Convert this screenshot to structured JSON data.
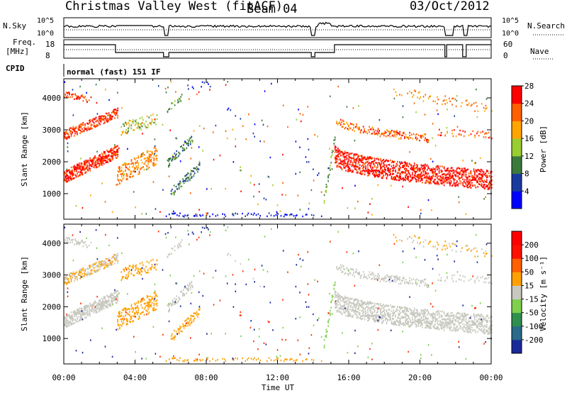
{
  "header": {
    "title": "Christmas Valley West (fitACF)",
    "beam": "Beam 04",
    "date": "03/Oct/2012"
  },
  "panels": {
    "nsky_label": "N.Sky",
    "nsearch_label": "N.Search",
    "freq_label_1": "Freq.",
    "freq_label_2": "[MHz]",
    "nave_label": "Nave",
    "cpid_label": "CPID",
    "cpid_value": "normal (fast) 151 IF",
    "noise_ticks": [
      "10^5",
      "10^0"
    ],
    "freq_ticks": [
      "18",
      "8"
    ],
    "nave_ticks": [
      "60",
      "0"
    ]
  },
  "chart_data": [
    {
      "type": "heatmap",
      "name": "power",
      "xlabel": "Time UT",
      "ylabel": "Slant Range [km]",
      "xlim": [
        0,
        24
      ],
      "ylim": [
        200,
        4600
      ],
      "x_ticks": [
        "00:00",
        "04:00",
        "08:00",
        "12:00",
        "16:00",
        "20:00",
        "00:00"
      ],
      "y_ticks": [
        1000,
        2000,
        3000,
        4000
      ],
      "colorbar": {
        "label": "Power [dB]",
        "ticks": [
          "4",
          "8",
          "12",
          "16",
          "20",
          "24",
          "28"
        ],
        "colors": [
          "#0000ff",
          "#1a3aa0",
          "#3c7a3c",
          "#9acd32",
          "#ffa500",
          "#ff6000",
          "#ff0000"
        ]
      }
    },
    {
      "type": "heatmap",
      "name": "velocity",
      "xlabel": "Time UT",
      "ylabel": "Slant Range [km]",
      "xlim": [
        0,
        24
      ],
      "ylim": [
        200,
        4600
      ],
      "x_ticks": [
        "00:00",
        "04:00",
        "08:00",
        "12:00",
        "16:00",
        "20:00",
        "00:00"
      ],
      "y_ticks": [
        1000,
        2000,
        3000,
        4000
      ],
      "colorbar": {
        "label": "Velocity [m s⁻¹]",
        "ticks": [
          "200",
          "100",
          "50",
          "15",
          "-15",
          "-50",
          "-100",
          "-200"
        ],
        "colors": [
          "#1a2a9a",
          "#2a6a8a",
          "#2f8f4f",
          "#7fd04f",
          "#c8c8c0",
          "#ffa000",
          "#ff6000",
          "#ff1000",
          "#ff0000"
        ]
      }
    }
  ]
}
